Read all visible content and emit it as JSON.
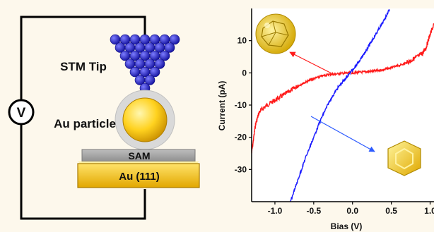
{
  "setup": {
    "stm_tip_label": "STM Tip",
    "voltmeter_symbol": "V",
    "au_particle_label": "Au particle",
    "sam_label": "SAM",
    "substrate_label": "Au (111)",
    "colors": {
      "tip_atom": "#1a16c8",
      "gold_light": "#ffe97a",
      "gold_dark": "#e0a800",
      "sam": "#a6a6a6",
      "shell": "#d9d9d9",
      "wire": "#000000"
    }
  },
  "chart_data": {
    "type": "line",
    "xlabel": "Bias (V)",
    "ylabel": "Current (pA)",
    "xlim": [
      -1.3,
      1.05
    ],
    "ylim": [
      -40,
      20
    ],
    "x_ticks": [
      "-1.0",
      "-0.5",
      "0.0",
      "0.5",
      "1.0"
    ],
    "y_ticks": [
      "10",
      "0",
      "-10",
      "-20",
      "-30"
    ],
    "grid": false,
    "series": [
      {
        "color": "#ff1a1a",
        "points": [
          [
            -1.3,
            -25
          ],
          [
            -1.25,
            -16
          ],
          [
            -1.2,
            -12
          ],
          [
            -1.1,
            -10
          ],
          [
            -1.0,
            -8.5
          ],
          [
            -0.9,
            -7
          ],
          [
            -0.8,
            -5.5
          ],
          [
            -0.7,
            -4
          ],
          [
            -0.6,
            -2.8
          ],
          [
            -0.5,
            -1.8
          ],
          [
            -0.4,
            -1.0
          ],
          [
            -0.3,
            -0.5
          ],
          [
            -0.2,
            -0.3
          ],
          [
            -0.1,
            -0.1
          ],
          [
            0.0,
            0.0
          ],
          [
            0.1,
            0.2
          ],
          [
            0.2,
            0.4
          ],
          [
            0.3,
            0.6
          ],
          [
            0.4,
            1.0
          ],
          [
            0.5,
            1.6
          ],
          [
            0.6,
            2.3
          ],
          [
            0.7,
            3.2
          ],
          [
            0.8,
            4.5
          ],
          [
            0.9,
            6.0
          ],
          [
            0.95,
            8.0
          ],
          [
            1.0,
            12.0
          ],
          [
            1.05,
            15.0
          ]
        ]
      },
      {
        "color": "#1a1aff",
        "points": [
          [
            -0.8,
            -40
          ],
          [
            -0.7,
            -33
          ],
          [
            -0.6,
            -26
          ],
          [
            -0.5,
            -20
          ],
          [
            -0.4,
            -14
          ],
          [
            -0.3,
            -9
          ],
          [
            -0.2,
            -5
          ],
          [
            -0.1,
            -2
          ],
          [
            0.0,
            1.0
          ],
          [
            0.1,
            4.0
          ],
          [
            0.2,
            8.0
          ],
          [
            0.3,
            12.0
          ],
          [
            0.4,
            16.0
          ],
          [
            0.48,
            20.0
          ]
        ]
      }
    ]
  }
}
